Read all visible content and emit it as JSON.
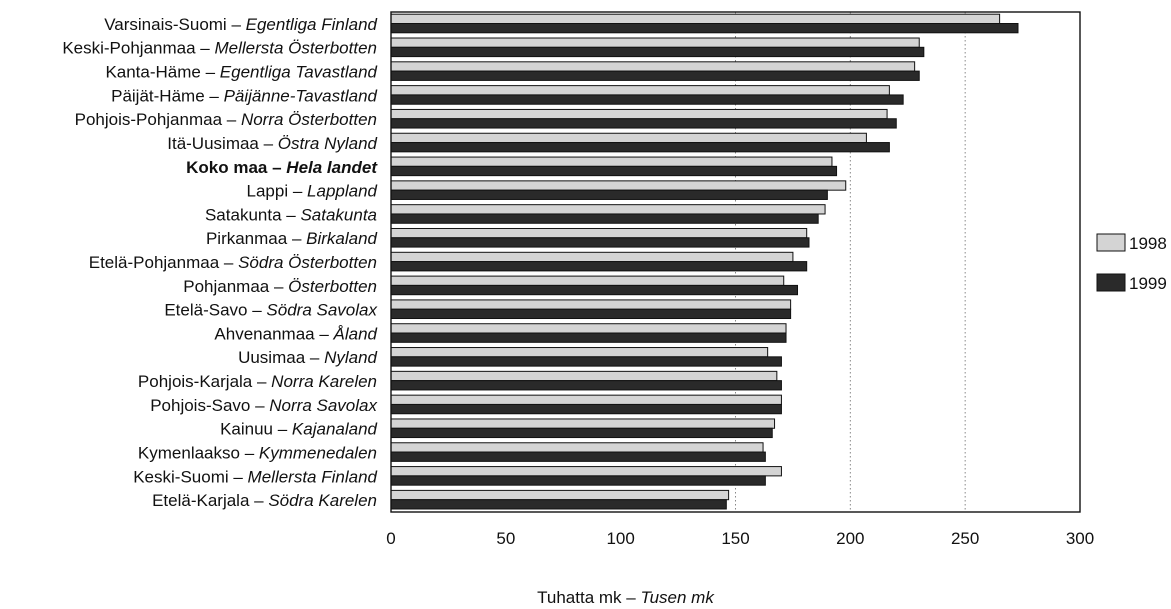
{
  "chart_data": {
    "type": "bar",
    "orientation": "horizontal",
    "categories": [
      {
        "fi": "Varsinais-Suomi",
        "sv": "Egentliga Finland",
        "bold": false
      },
      {
        "fi": "Keski-Pohjanmaa",
        "sv": "Mellersta Österbotten",
        "bold": false
      },
      {
        "fi": "Kanta-Häme",
        "sv": "Egentliga Tavastland",
        "bold": false
      },
      {
        "fi": "Päijät-Häme",
        "sv": "Päijänne-Tavastland",
        "bold": false
      },
      {
        "fi": "Pohjois-Pohjanmaa",
        "sv": "Norra Österbotten",
        "bold": false
      },
      {
        "fi": "Itä-Uusimaa",
        "sv": "Östra Nyland",
        "bold": false
      },
      {
        "fi": "Koko maa",
        "sv": "Hela landet",
        "bold": true
      },
      {
        "fi": "Lappi",
        "sv": "Lappland",
        "bold": false
      },
      {
        "fi": "Satakunta",
        "sv": "Satakunta",
        "bold": false
      },
      {
        "fi": "Pirkanmaa",
        "sv": "Birkaland",
        "bold": false
      },
      {
        "fi": "Etelä-Pohjanmaa",
        "sv": "Södra Österbotten",
        "bold": false
      },
      {
        "fi": "Pohjanmaa",
        "sv": "Österbotten",
        "bold": false
      },
      {
        "fi": "Etelä-Savo",
        "sv": "Södra Savolax",
        "bold": false
      },
      {
        "fi": "Ahvenanmaa",
        "sv": "Åland",
        "bold": false
      },
      {
        "fi": "Uusimaa",
        "sv": "Nyland",
        "bold": false
      },
      {
        "fi": "Pohjois-Karjala",
        "sv": "Norra Karelen",
        "bold": false
      },
      {
        "fi": "Pohjois-Savo",
        "sv": "Norra Savolax",
        "bold": false
      },
      {
        "fi": "Kainuu",
        "sv": "Kajanaland",
        "bold": false
      },
      {
        "fi": "Kymenlaakso",
        "sv": "Kymmenedalen",
        "bold": false
      },
      {
        "fi": "Keski-Suomi",
        "sv": "Mellersta Finland",
        "bold": false
      },
      {
        "fi": "Etelä-Karjala",
        "sv": "Södra Karelen",
        "bold": false
      }
    ],
    "series": [
      {
        "name": "1998",
        "color": "#d4d4d4",
        "values": [
          265,
          230,
          228,
          217,
          216,
          207,
          192,
          198,
          189,
          181,
          175,
          171,
          174,
          172,
          164,
          168,
          170,
          167,
          162,
          170,
          147
        ]
      },
      {
        "name": "1999",
        "color": "#2a2a2a",
        "values": [
          273,
          232,
          230,
          223,
          220,
          217,
          194,
          190,
          186,
          182,
          181,
          177,
          174,
          172,
          170,
          170,
          170,
          166,
          163,
          163,
          146
        ]
      }
    ],
    "xlim": [
      0,
      300
    ],
    "xticks": [
      "0",
      "50",
      "100",
      "150",
      "200",
      "250",
      "300"
    ],
    "gridlines_at": [
      150,
      200,
      250
    ],
    "xlabel_fi": "Tuhatta mk",
    "xlabel_sv": "Tusen mk",
    "dash": "–",
    "legend_position": "right"
  }
}
